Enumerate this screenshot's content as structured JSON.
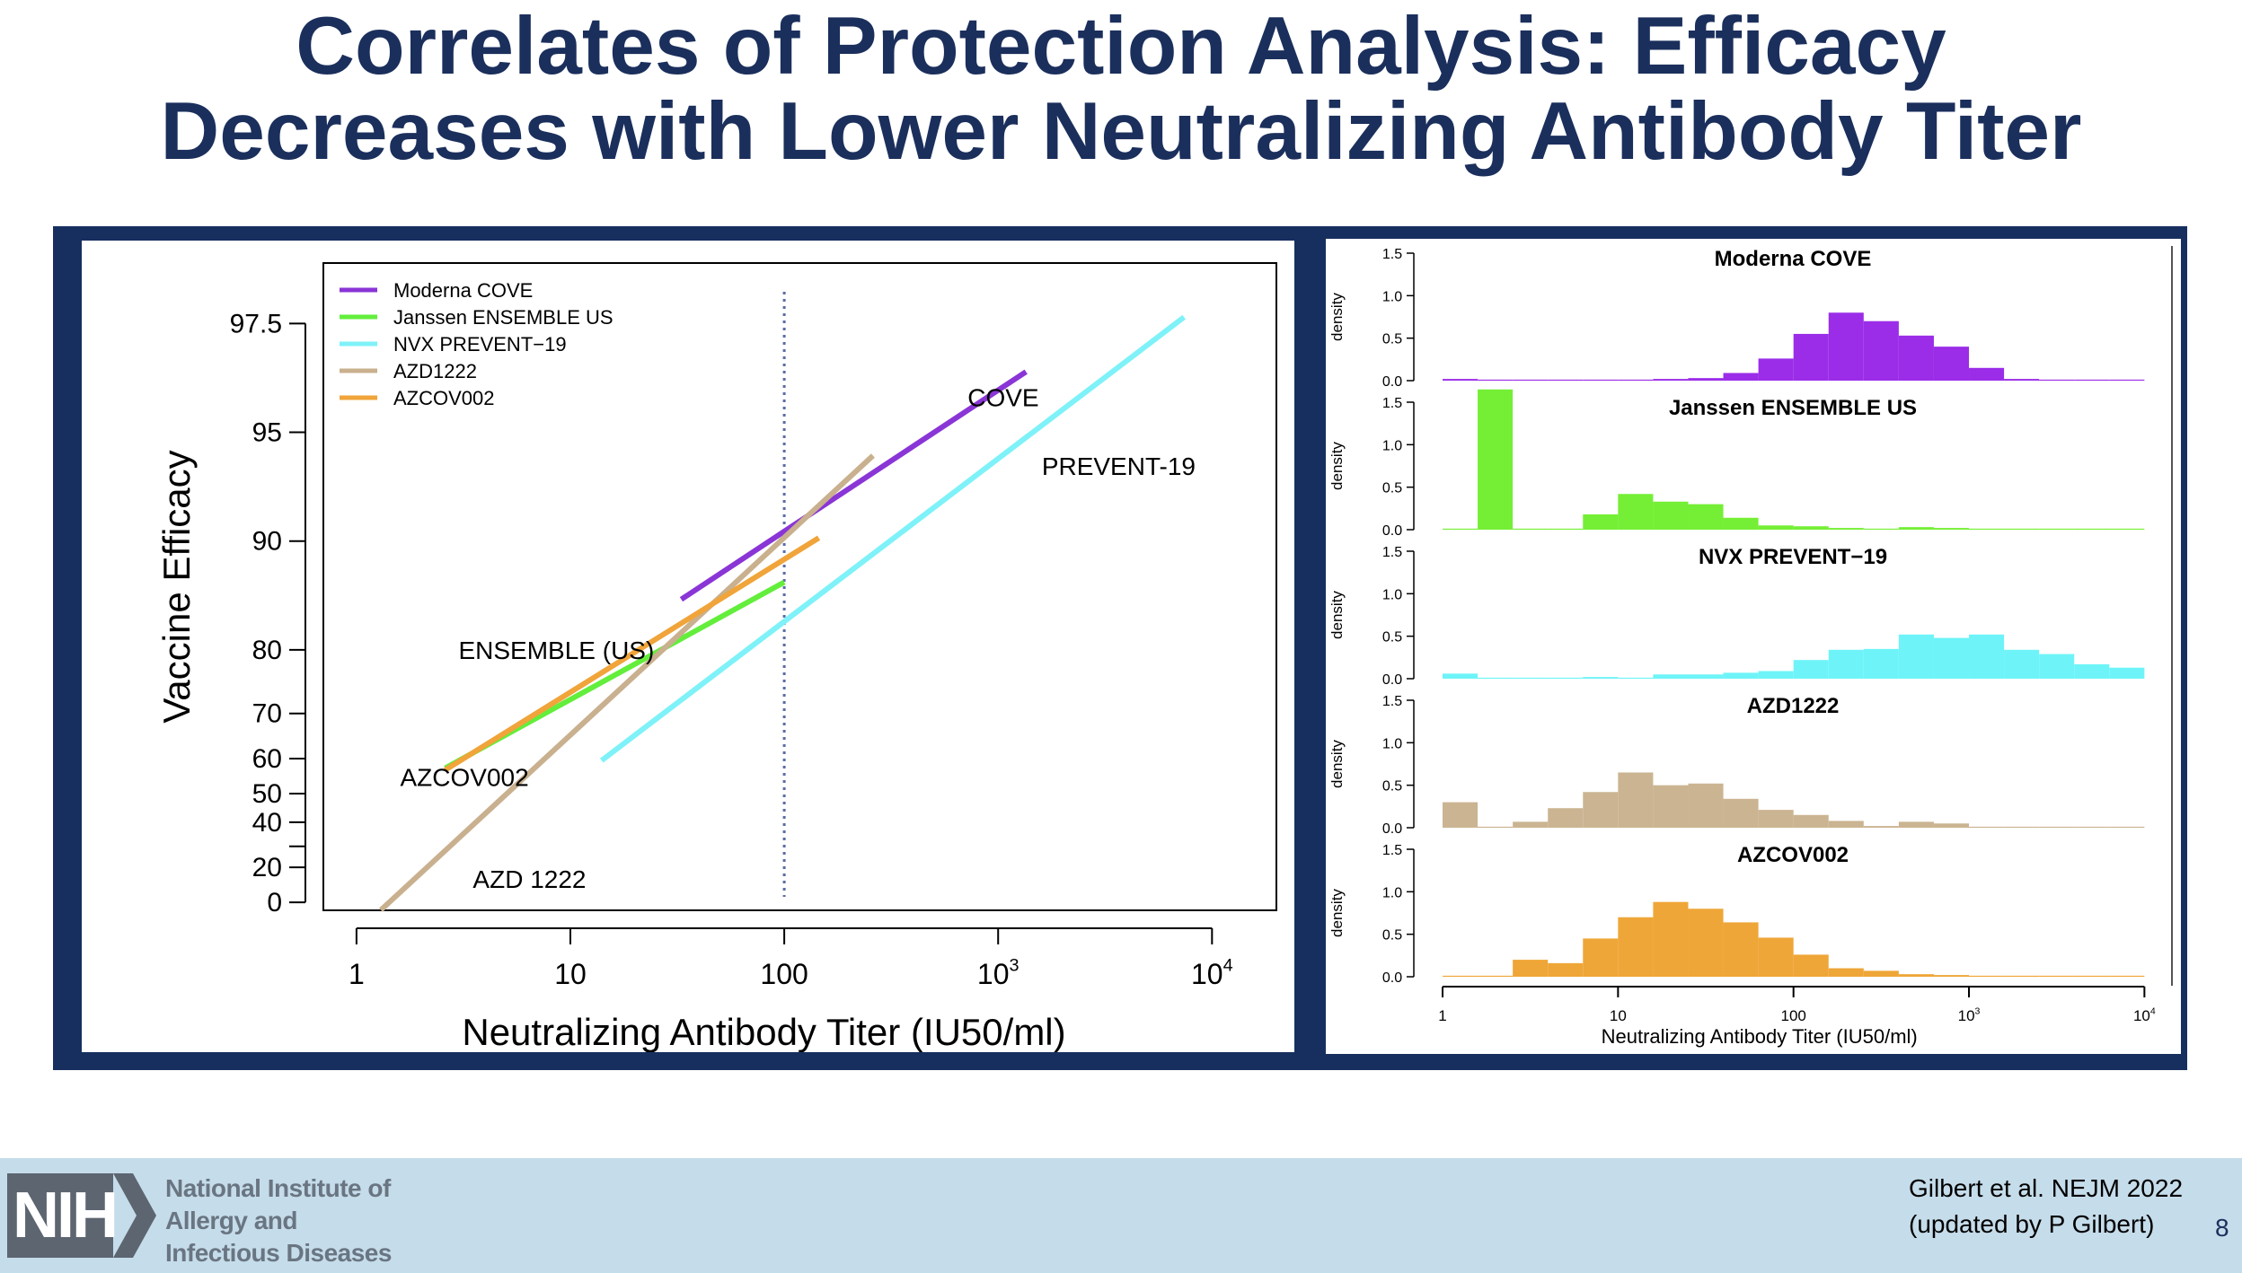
{
  "slide": {
    "title_line1": "Correlates of Protection Analysis: Efficacy",
    "title_line2": "Decreases with Lower Neutralizing Antibody Titer",
    "institute": [
      "National Institute of",
      "Allergy and",
      "Infectious Diseases"
    ],
    "logo_text": "NIH",
    "citation": [
      "Gilbert et al. NEJM 2022",
      "(updated by P Gilbert)"
    ],
    "page_number": "8"
  },
  "chart_data": [
    {
      "type": "line",
      "xlabel": "Neutralizing Antibody Titer (IU50/ml)",
      "ylabel": "Vaccine Efficacy",
      "x_scale": "log10",
      "xlim": [
        0.7,
        20000
      ],
      "x_ticks": [
        {
          "value": 1,
          "label": "1"
        },
        {
          "value": 10,
          "label": "10"
        },
        {
          "value": 100,
          "label": "100"
        },
        {
          "value": 1000,
          "label": "10",
          "sup": "3"
        },
        {
          "value": 10000,
          "label": "10",
          "sup": "4"
        }
      ],
      "y_scale": "-log10(1 - VE)",
      "y_ticks_labeled": [
        0,
        20,
        40,
        50,
        60,
        70,
        80,
        90,
        95,
        97.5
      ],
      "y_ticks_unlabeled": [
        30
      ],
      "reference_line_x": 100,
      "legend_position": "top-left",
      "series": [
        {
          "name": "Moderna COVE",
          "color": "#8a35d6",
          "points": [
            [
              33,
              85.5
            ],
            [
              1350,
              96.6
            ]
          ]
        },
        {
          "name": "Janssen ENSEMBLE US",
          "color": "#63ee3c",
          "points": [
            [
              2.6,
              57.5
            ],
            [
              100,
              87
            ]
          ]
        },
        {
          "name": "NVX PREVENT−19",
          "color": "#7ef2f8",
          "points": [
            [
              14,
              59.5
            ],
            [
              7400,
              97.6
            ]
          ]
        },
        {
          "name": "AZD1222",
          "color": "#c9b08e",
          "points": [
            [
              1.3,
              -5
            ],
            [
              260,
              94.2
            ]
          ]
        },
        {
          "name": "AZCOV002",
          "color": "#f0a43a",
          "points": [
            [
              2.6,
              57
            ],
            [
              145,
              90.2
            ]
          ]
        }
      ],
      "annotations": [
        {
          "text": "COVE",
          "x": 720,
          "y": 96
        },
        {
          "text": "PREVENT-19",
          "x": 1600,
          "y": 93.8
        },
        {
          "text": "ENSEMBLE (US)",
          "x": 3,
          "y": 80
        },
        {
          "text": "AZCOV002",
          "x": 1.6,
          "y": 55
        },
        {
          "text": "AZD  1222",
          "x": 3.5,
          "y": 14
        }
      ]
    },
    {
      "type": "bar",
      "subtype": "stacked-histograms",
      "xlabel": "Neutralizing Antibody Titer (IU50/ml)",
      "ylabel": "density",
      "x_scale": "log10",
      "xlim": [
        1,
        10000
      ],
      "x_ticks": [
        {
          "value": 1,
          "label": "1"
        },
        {
          "value": 10,
          "label": "10"
        },
        {
          "value": 100,
          "label": "100"
        },
        {
          "value": 1000,
          "label": "10",
          "sup": "3"
        },
        {
          "value": 10000,
          "label": "10",
          "sup": "4"
        }
      ],
      "ylim": [
        0,
        1.5
      ],
      "y_ticks": [
        "0.0",
        "0.5",
        "1.0",
        "1.5"
      ],
      "bin_edges_log10": [
        0,
        0.2,
        0.4,
        0.6,
        0.8,
        1.0,
        1.2,
        1.4,
        1.6,
        1.8,
        2.0,
        2.2,
        2.4,
        2.6,
        2.8,
        3.0,
        3.2,
        3.4,
        3.6,
        3.8,
        4.0
      ],
      "panels": [
        {
          "name": "Moderna COVE",
          "color": "#9b2de8",
          "densities": [
            0.02,
            0,
            0.01,
            0,
            0,
            0,
            0.02,
            0.03,
            0.09,
            0.26,
            0.55,
            0.8,
            0.7,
            0.53,
            0.4,
            0.15,
            0.02,
            0.01,
            0,
            0
          ]
        },
        {
          "name": "Janssen ENSEMBLE US",
          "color": "#74ef35",
          "densities": [
            0,
            1.65,
            0,
            0,
            0.18,
            0.42,
            0.33,
            0.3,
            0.14,
            0.05,
            0.04,
            0.02,
            0.01,
            0.03,
            0.02,
            0,
            0,
            0,
            0,
            0
          ]
        },
        {
          "name": "NVX PREVENT−19",
          "color": "#6ef4f8",
          "densities": [
            0.06,
            0,
            0,
            0.01,
            0.02,
            0.01,
            0.05,
            0.05,
            0.07,
            0.09,
            0.22,
            0.34,
            0.35,
            0.52,
            0.48,
            0.52,
            0.34,
            0.29,
            0.17,
            0.13
          ]
        },
        {
          "name": "AZD1222",
          "color": "#cbb492",
          "densities": [
            0.3,
            0,
            0.07,
            0.23,
            0.42,
            0.65,
            0.5,
            0.52,
            0.34,
            0.21,
            0.15,
            0.08,
            0.02,
            0.07,
            0.05,
            0,
            0,
            0,
            0,
            0
          ]
        },
        {
          "name": "AZCOV002",
          "color": "#efa638",
          "densities": [
            0,
            0,
            0.2,
            0.16,
            0.45,
            0.7,
            0.88,
            0.8,
            0.64,
            0.46,
            0.26,
            0.1,
            0.07,
            0.03,
            0.02,
            0,
            0,
            0,
            0,
            0
          ]
        }
      ]
    }
  ]
}
